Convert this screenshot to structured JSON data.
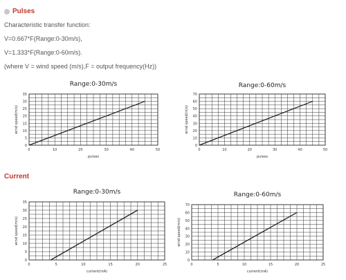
{
  "sections": {
    "pulses": {
      "heading": "Pulses",
      "bullet_color": "#c8c8c8"
    },
    "current": {
      "heading": "Current"
    }
  },
  "text": {
    "intro": "Characteristic transfer function:",
    "formula1": "V=0.667*F(Range:0-30m/s),",
    "formula2": "V=1.333*F(Range:0-60m/s).",
    "where": "(where V = wind speed (m/s),F = output frequency(Hz))"
  },
  "colors": {
    "heading": "#c0392b",
    "plot_line": "#222222",
    "grid": "#333333"
  },
  "chart_data": [
    {
      "type": "line",
      "title": "Range:0-30m/s",
      "xlabel": "pulses",
      "ylabel": "wind speed(m/s)",
      "xlim": [
        0,
        50
      ],
      "ylim": [
        0,
        35
      ],
      "xticks": [
        0,
        10,
        20,
        30,
        40,
        50
      ],
      "yticks": [
        0,
        5,
        10,
        15,
        20,
        25,
        30,
        35
      ],
      "grid_x_step": 2.5,
      "grid_y_step": 2.5,
      "series": [
        {
          "x": [
            0,
            45
          ],
          "y": [
            0,
            30
          ]
        }
      ]
    },
    {
      "type": "line",
      "title": "Range:0-60m/s",
      "xlabel": "pulses",
      "ylabel": "wind speed(m/s)",
      "xlim": [
        0,
        50
      ],
      "ylim": [
        0,
        70
      ],
      "xticks": [
        0,
        10,
        20,
        30,
        40,
        50
      ],
      "yticks": [
        0,
        10,
        20,
        30,
        40,
        50,
        60,
        70
      ],
      "grid_x_step": 2.5,
      "grid_y_step": 5,
      "series": [
        {
          "x": [
            0,
            45
          ],
          "y": [
            0,
            60
          ]
        }
      ]
    },
    {
      "type": "line",
      "title": "Range:0-30m/s",
      "xlabel": "current(mA)",
      "ylabel": "wind speed(m/s)",
      "xlim": [
        0,
        25
      ],
      "ylim": [
        0,
        35
      ],
      "xticks": [
        0,
        5,
        10,
        15,
        20,
        25
      ],
      "yticks": [
        0,
        5,
        10,
        15,
        20,
        25,
        30,
        35
      ],
      "grid_x_step": 1.25,
      "grid_y_step": 2.5,
      "series": [
        {
          "x": [
            4,
            20
          ],
          "y": [
            0,
            30
          ]
        }
      ]
    },
    {
      "type": "line",
      "title": "Range:0-60m/s",
      "xlabel": "current(mA)",
      "ylabel": "wind speed(m/s)",
      "xlim": [
        0,
        25
      ],
      "ylim": [
        0,
        70
      ],
      "xticks": [
        0,
        5,
        10,
        15,
        20,
        25
      ],
      "yticks": [
        0,
        10,
        20,
        30,
        40,
        50,
        60,
        70
      ],
      "grid_x_step": 1.25,
      "grid_y_step": 5,
      "series": [
        {
          "x": [
            4,
            20
          ],
          "y": [
            0,
            60
          ]
        }
      ]
    }
  ]
}
